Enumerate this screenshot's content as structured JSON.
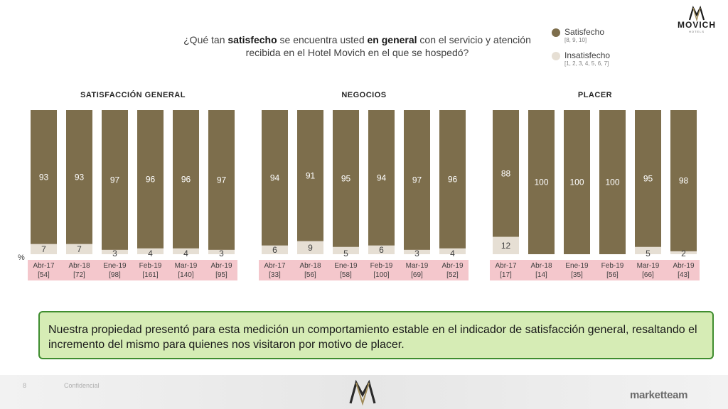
{
  "question": {
    "part1": "¿Qué tan ",
    "bold1": "satisfecho",
    "part2": " se encuentra usted ",
    "bold2": "en general",
    "part3": " con el servicio y atención recibida en el Hotel Movich en el que se hospedó?"
  },
  "logo": {
    "name": "MOVICH",
    "sub": "HOTELS"
  },
  "legend": [
    {
      "label": "Satisfecho",
      "sub": "[8, 9, 10]",
      "color": "#7d6e4c"
    },
    {
      "label": "Insatisfecho",
      "sub": "[1, 2, 3, 4, 5, 6, 7]",
      "color": "#e6dfd4"
    }
  ],
  "percent_symbol": "%",
  "colors": {
    "satisfied": "#7d6e4c",
    "dissatisfied": "#e6dfd4",
    "label_bg": "#f4c7cc",
    "callout_bg": "#d6ecb5",
    "callout_border": "#3f8d2f"
  },
  "chart_data": {
    "type": "bar",
    "stacked": true,
    "ylim": [
      0,
      100
    ],
    "groups": [
      {
        "title": "SATISFACCIÓN GENERAL",
        "categories": [
          "Abr-17",
          "Abr-18",
          "Ene-19",
          "Feb-19",
          "Mar-19",
          "Abr-19"
        ],
        "bases": [
          "[54]",
          "[72]",
          "[98]",
          "[161]",
          "[140]",
          "[95]"
        ],
        "satisfecho": [
          93,
          93,
          97,
          96,
          96,
          97
        ],
        "insatisfecho": [
          7,
          7,
          3,
          4,
          4,
          3
        ]
      },
      {
        "title": "NEGOCIOS",
        "categories": [
          "Abr-17",
          "Abr-18",
          "Ene-19",
          "Feb-19",
          "Mar-19",
          "Abr-19"
        ],
        "bases": [
          "[33]",
          "[56]",
          "[58]",
          "[100]",
          "[69]",
          "[52]"
        ],
        "satisfecho": [
          94,
          91,
          95,
          94,
          97,
          96
        ],
        "insatisfecho": [
          6,
          9,
          5,
          6,
          3,
          4
        ]
      },
      {
        "title": "PLACER",
        "categories": [
          "Abr-17",
          "Abr-18",
          "Ene-19",
          "Feb-19",
          "Mar-19",
          "Abr-19"
        ],
        "bases": [
          "[17]",
          "[14]",
          "[35]",
          "[56]",
          "[66]",
          "[43]"
        ],
        "satisfecho": [
          88,
          100,
          100,
          100,
          95,
          98
        ],
        "insatisfecho": [
          12,
          null,
          null,
          null,
          5,
          2
        ]
      }
    ]
  },
  "callout": "Nuestra propiedad presentó para esta medición un comportamiento estable en el indicador de satisfacción general, resaltando el incremento del mismo para quienes nos visitaron por motivo de placer.",
  "footer": {
    "page": "8",
    "text": "Confidencial",
    "brand": "marketteam"
  }
}
